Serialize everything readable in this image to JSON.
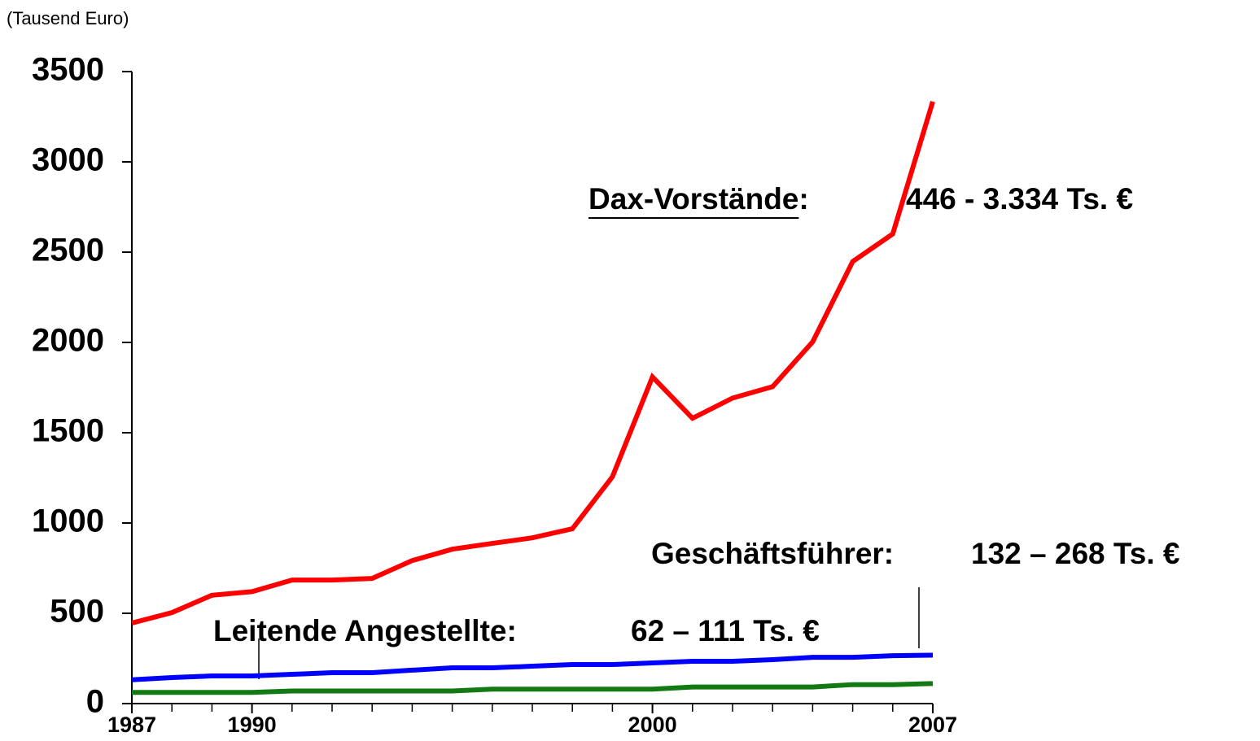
{
  "chart_data": {
    "type": "line",
    "subtitle": "(Tausend Euro)",
    "x": [
      1987,
      1988,
      1989,
      1990,
      1991,
      1992,
      1993,
      1994,
      1995,
      1996,
      1997,
      1998,
      1999,
      2000,
      2001,
      2002,
      2003,
      2004,
      2005,
      2006,
      2007
    ],
    "series": [
      {
        "name": "Dax-Vorstände:",
        "label": "446 - 3.334 Ts. €",
        "color": "#ff0000",
        "values": [
          446,
          504,
          600,
          620,
          684,
          684,
          693,
          792,
          855,
          887,
          918,
          968,
          1256,
          1809,
          1580,
          1692,
          1755,
          2003,
          2448,
          2601,
          3334
        ]
      },
      {
        "name": "Geschäftsführer:",
        "label": "132 – 268 Ts. €",
        "color": "#0000ff",
        "values": [
          132,
          144,
          153,
          153,
          162,
          171,
          171,
          185,
          198,
          198,
          207,
          216,
          216,
          225,
          234,
          234,
          243,
          256,
          256,
          265,
          268
        ]
      },
      {
        "name": "Leitende Angestellte:",
        "label": "62 – 111 Ts. €",
        "color": "#137a13",
        "values": [
          62,
          62,
          62,
          62,
          70,
          70,
          70,
          70,
          70,
          80,
          80,
          80,
          80,
          80,
          92,
          92,
          92,
          92,
          105,
          105,
          111
        ]
      }
    ],
    "xlim": [
      1987,
      2007
    ],
    "xticks": [
      1987,
      1990,
      2000,
      2007
    ],
    "ylim": [
      0,
      3500
    ],
    "yticks": [
      0,
      500,
      1000,
      1500,
      2000,
      2500,
      3000,
      3500
    ],
    "grid": false
  }
}
